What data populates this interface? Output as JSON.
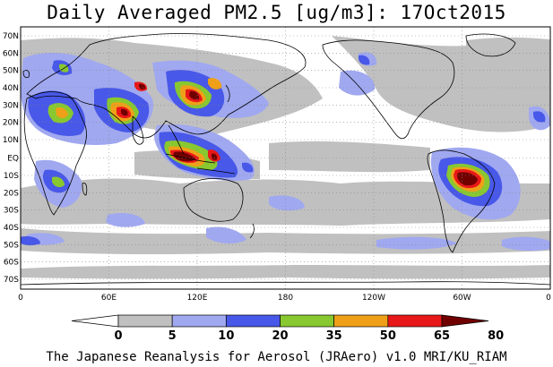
{
  "title": "Daily Averaged PM2.5 [ug/m3]: 17Oct2015",
  "footer": "The Japanese Reanalysis for Aerosol (JRAero) v1.0 MRI/KU_RIAM",
  "lat_labels": [
    "70N",
    "60N",
    "50N",
    "40N",
    "30N",
    "20N",
    "10N",
    "EQ",
    "10S",
    "20S",
    "30S",
    "40S",
    "50S",
    "60S",
    "70S"
  ],
  "lon_labels": [
    "0",
    "60E",
    "120E",
    "180",
    "120W",
    "60W",
    "0"
  ],
  "colorbar": {
    "labels": [
      "0",
      "5",
      "10",
      "20",
      "35",
      "50",
      "65",
      "80"
    ],
    "colors": [
      "#ffffff",
      "#c0c0c0",
      "#a0a8f0",
      "#4858e8",
      "#88c830",
      "#f0a018",
      "#e81818",
      "#700000"
    ]
  },
  "map": {
    "land_outline_color": "#000000",
    "grid_style": "dotted",
    "projection": "equirectangular",
    "lat_range": [
      -75,
      75
    ],
    "lon_range": [
      0,
      360
    ]
  }
}
